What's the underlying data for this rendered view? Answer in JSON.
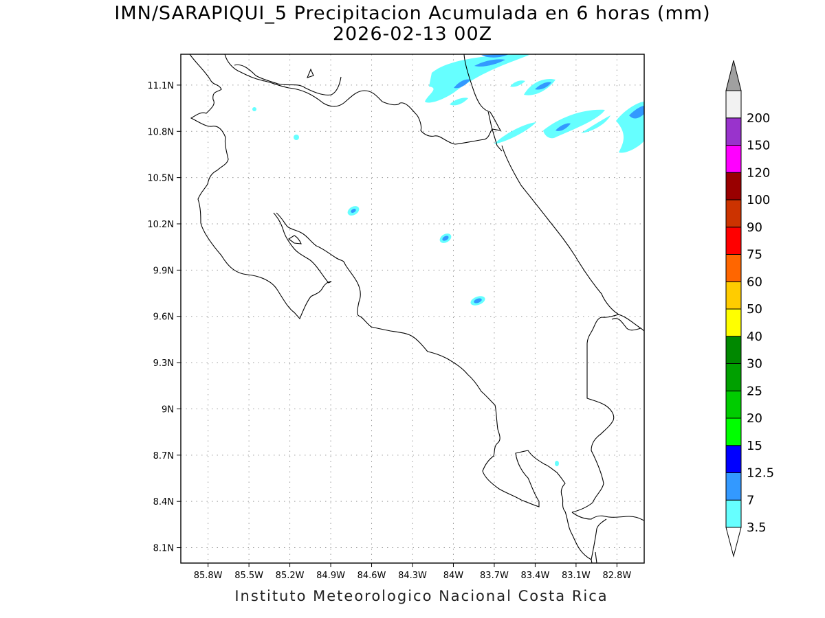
{
  "title": {
    "line1": "IMN/SARAPIQUI_5 Precipitacion Acumulada en 6 horas (mm)",
    "line2": "2026-02-13 00Z"
  },
  "footer": "Instituto Meteorologico Nacional Costa Rica",
  "map": {
    "lon_range": [
      -86.0,
      -82.6
    ],
    "lat_range": [
      8.0,
      11.3
    ],
    "lat_ticks": [
      {
        "value": 11.1,
        "label": "11.1N"
      },
      {
        "value": 10.8,
        "label": "10.8N"
      },
      {
        "value": 10.5,
        "label": "10.5N"
      },
      {
        "value": 10.2,
        "label": "10.2N"
      },
      {
        "value": 9.9,
        "label": "9.9N"
      },
      {
        "value": 9.6,
        "label": "9.6N"
      },
      {
        "value": 9.3,
        "label": "9.3N"
      },
      {
        "value": 9.0,
        "label": "9N"
      },
      {
        "value": 8.7,
        "label": "8.7N"
      },
      {
        "value": 8.4,
        "label": "8.4N"
      },
      {
        "value": 8.1,
        "label": "8.1N"
      }
    ],
    "lon_ticks": [
      {
        "value": -85.8,
        "label": "85.8W"
      },
      {
        "value": -85.5,
        "label": "85.5W"
      },
      {
        "value": -85.2,
        "label": "85.2W"
      },
      {
        "value": -84.9,
        "label": "84.9W"
      },
      {
        "value": -84.6,
        "label": "84.6W"
      },
      {
        "value": -84.3,
        "label": "84.3W"
      },
      {
        "value": -84.0,
        "label": "84W"
      },
      {
        "value": -83.7,
        "label": "83.7W"
      },
      {
        "value": -83.4,
        "label": "83.4W"
      },
      {
        "value": -83.1,
        "label": "83.1W"
      },
      {
        "value": -82.8,
        "label": "82.8W"
      }
    ],
    "grid": "dotted"
  },
  "colorbar": {
    "labels": [
      "3.5",
      "7",
      "12.5",
      "15",
      "20",
      "25",
      "30",
      "40",
      "50",
      "60",
      "75",
      "90",
      "100",
      "120",
      "150",
      "200"
    ],
    "colors": [
      "#66ffff",
      "#3399ff",
      "#0000ff",
      "#00ff00",
      "#00cc00",
      "#00a000",
      "#008800",
      "#ffff00",
      "#ffcc00",
      "#ff6600",
      "#ff0000",
      "#cc3300",
      "#990000",
      "#ff00ff",
      "#9933cc",
      "#f2f2f2"
    ],
    "over_color": "#a0a0a0",
    "under_color": "#ffffff"
  }
}
